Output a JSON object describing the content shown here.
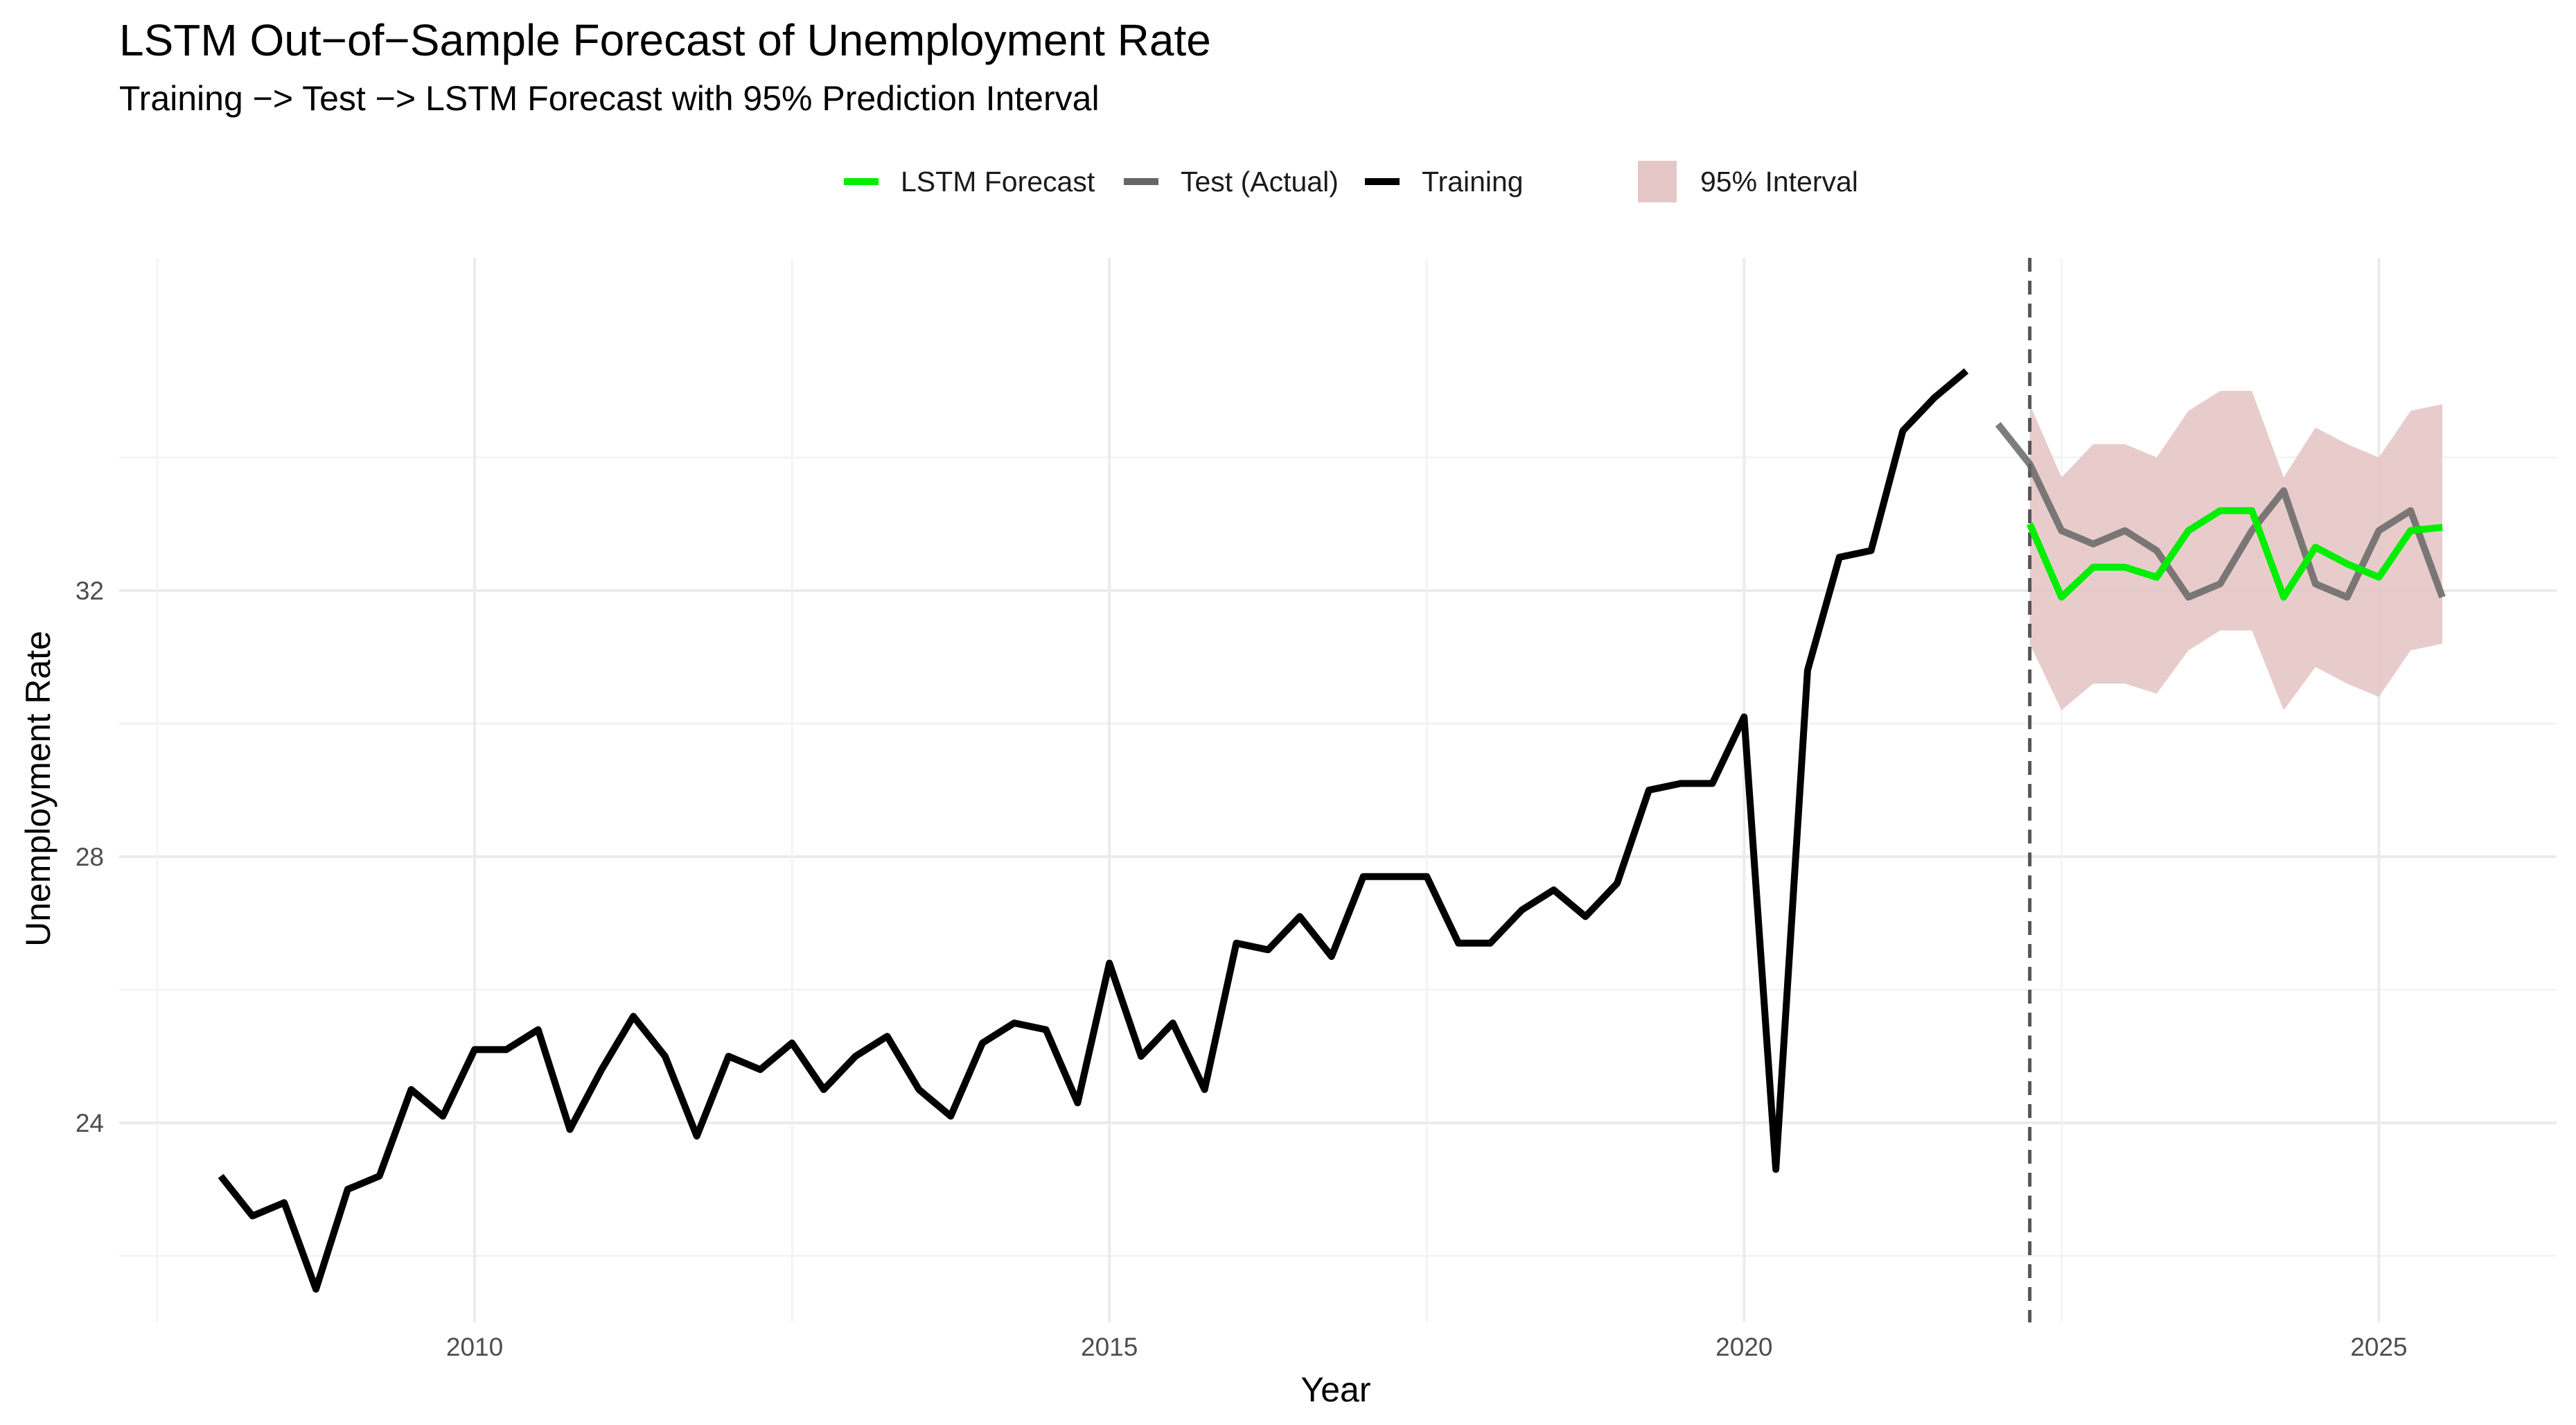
{
  "title": "LSTM Out−of−Sample Forecast of Unemployment Rate",
  "subtitle": "Training −> Test −> LSTM Forecast with 95% Prediction Interval",
  "chart_data": {
    "type": "line",
    "xlabel": "Year",
    "ylabel": "Unemployment Rate",
    "xlim": [
      2007.2,
      2026.4
    ],
    "ylim": [
      21.0,
      37.0
    ],
    "x_ticks": [
      2010,
      2015,
      2020,
      2025
    ],
    "x_tick_labels": [
      "2010",
      "2015",
      "2020",
      "2025"
    ],
    "y_ticks": [
      24,
      28,
      32
    ],
    "y_tick_labels": [
      "24",
      "28",
      "32"
    ],
    "grid": true,
    "legend_position": "top",
    "forecast_start_marker": 2022.25,
    "legend": [
      {
        "label": "LSTM Forecast",
        "kind": "line",
        "color": "#00ee00"
      },
      {
        "label": "Test (Actual)",
        "kind": "line",
        "color": "#666666"
      },
      {
        "label": "Training",
        "kind": "line",
        "color": "#000000"
      },
      {
        "label": "95% Interval",
        "kind": "area",
        "color": "#e5c6c7"
      }
    ],
    "series": [
      {
        "name": "Training",
        "color": "#000000",
        "x": [
          2008.0,
          2008.25,
          2008.5,
          2008.75,
          2009.0,
          2009.25,
          2009.5,
          2009.75,
          2010.0,
          2010.25,
          2010.5,
          2010.75,
          2011.0,
          2011.25,
          2011.5,
          2011.75,
          2012.0,
          2012.25,
          2012.5,
          2012.75,
          2013.0,
          2013.25,
          2013.5,
          2013.75,
          2014.0,
          2014.25,
          2014.5,
          2014.75,
          2015.0,
          2015.25,
          2015.5,
          2015.75,
          2016.0,
          2016.25,
          2016.5,
          2016.75,
          2017.0,
          2017.25,
          2017.5,
          2017.75,
          2018.0,
          2018.25,
          2018.5,
          2018.75,
          2019.0,
          2019.25,
          2019.5,
          2019.75,
          2020.0,
          2020.25,
          2020.5,
          2020.75,
          2021.0,
          2021.25,
          2021.5,
          2021.75
        ],
        "values": [
          23.2,
          22.6,
          22.8,
          21.5,
          23.0,
          23.2,
          24.5,
          24.1,
          25.1,
          25.1,
          25.4,
          23.9,
          24.8,
          25.6,
          25.0,
          23.8,
          25.0,
          24.8,
          25.2,
          24.5,
          25.0,
          25.3,
          24.5,
          24.1,
          25.2,
          25.5,
          25.4,
          24.3,
          26.4,
          25.0,
          25.5,
          24.5,
          26.7,
          26.6,
          27.1,
          26.5,
          27.7,
          27.7,
          27.7,
          26.7,
          26.7,
          27.2,
          27.5,
          27.1,
          27.6,
          29.0,
          29.1,
          29.1,
          30.1,
          23.3,
          30.8,
          32.5,
          32.6,
          34.4,
          34.9,
          35.3
        ]
      },
      {
        "name": "Test (Actual)",
        "color": "#666666",
        "x": [
          2022.0,
          2022.25,
          2022.5,
          2022.75,
          2023.0,
          2023.25,
          2023.5,
          2023.75,
          2024.0,
          2024.25,
          2024.5,
          2024.75,
          2025.0,
          2025.25,
          2025.5
        ],
        "values": [
          34.5,
          33.9,
          32.9,
          32.7,
          32.9,
          32.6,
          31.9,
          32.1,
          32.9,
          33.5,
          32.1,
          31.9,
          32.9,
          33.2,
          31.9
        ]
      },
      {
        "name": "LSTM Forecast",
        "color": "#00ee00",
        "x": [
          2022.25,
          2022.5,
          2022.75,
          2023.0,
          2023.25,
          2023.5,
          2023.75,
          2024.0,
          2024.25,
          2024.5,
          2024.75,
          2025.0,
          2025.25,
          2025.5
        ],
        "values": [
          33.0,
          31.9,
          32.35,
          32.35,
          32.2,
          32.9,
          33.2,
          33.2,
          31.9,
          32.65,
          32.4,
          32.2,
          32.9,
          32.95
        ]
      }
    ],
    "interval": {
      "name": "95% Interval",
      "color": "#e5c6c7",
      "x": [
        2022.25,
        2022.5,
        2022.75,
        2023.0,
        2023.25,
        2023.5,
        2023.75,
        2024.0,
        2024.25,
        2024.5,
        2024.75,
        2025.0,
        2025.25,
        2025.5
      ],
      "lower": [
        31.2,
        30.2,
        30.6,
        30.6,
        30.45,
        31.1,
        31.4,
        31.4,
        30.2,
        30.85,
        30.6,
        30.4,
        31.1,
        31.2
      ],
      "upper": [
        34.8,
        33.7,
        34.2,
        34.2,
        34.0,
        34.7,
        35.0,
        35.0,
        33.7,
        34.45,
        34.2,
        34.0,
        34.7,
        34.8
      ]
    }
  }
}
